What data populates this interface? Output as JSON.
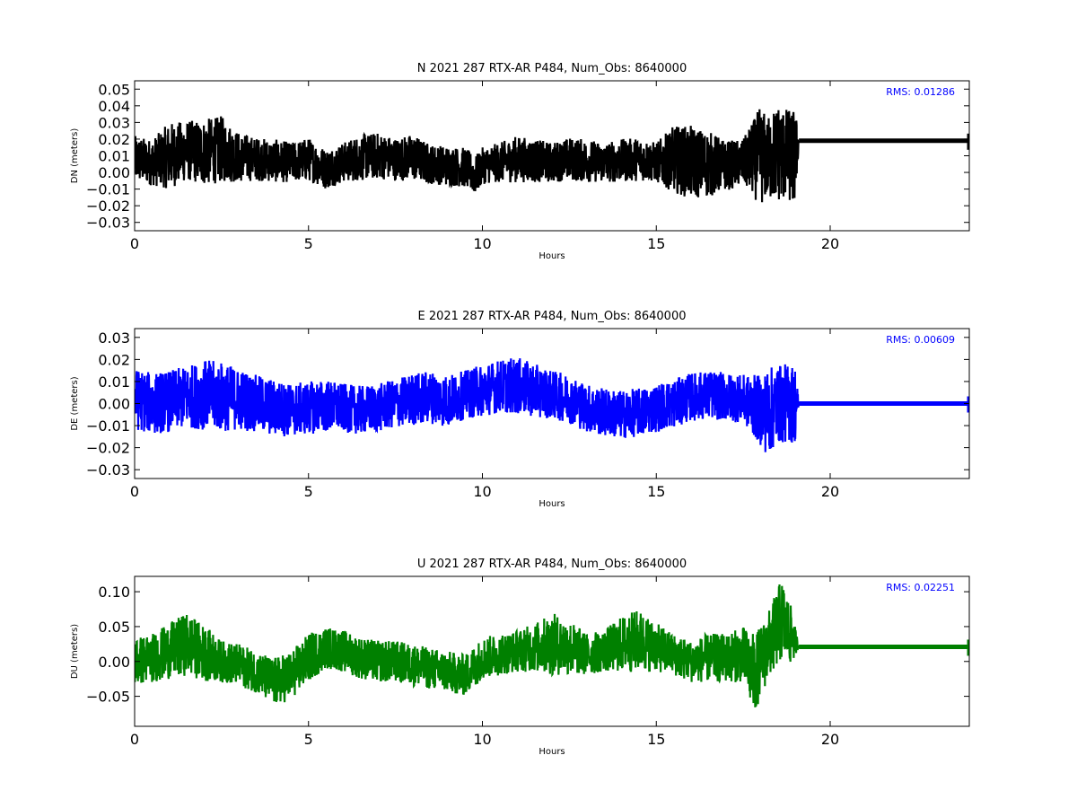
{
  "chart_data": [
    {
      "type": "line",
      "title": "N 2021 287 RTX-AR  P484, Num_Obs: 8640000",
      "xlabel": "Hours",
      "ylabel": "DN (meters)",
      "xlim": [
        0,
        24
      ],
      "ylim": [
        -0.035,
        0.055
      ],
      "xticks": [
        0,
        5,
        10,
        15,
        20
      ],
      "yticks": [
        -0.03,
        -0.02,
        -0.01,
        0.0,
        0.01,
        0.02,
        0.03,
        0.04,
        0.05
      ],
      "ytick_labels": [
        "−0.03",
        "−0.02",
        "−0.01",
        "0.00",
        "0.01",
        "0.02",
        "0.03",
        "0.04",
        "0.05"
      ],
      "grid": false,
      "color": "#000000",
      "annotation": "RMS:  0.01286",
      "annotation_color": "#0000ff",
      "series": [
        {
          "x": [
            0.0,
            0.5,
            1.0,
            1.5,
            2.0,
            2.5,
            3.0,
            3.5,
            4.0,
            4.5,
            5.0,
            5.5,
            6.0,
            6.5,
            7.0,
            7.5,
            8.0,
            8.5,
            9.0,
            9.5,
            9.8,
            10.0,
            10.5,
            11.0,
            11.5,
            12.0,
            12.5,
            13.0,
            13.5,
            14.0,
            14.5,
            15.0,
            15.5,
            16.0,
            16.5,
            17.0,
            17.5,
            18.0,
            18.2,
            18.5,
            18.8,
            19.0,
            19.1,
            24.0
          ],
          "y": [
            0.008,
            0.006,
            0.01,
            0.013,
            0.012,
            0.014,
            0.009,
            0.008,
            0.007,
            0.006,
            0.008,
            0.002,
            0.006,
            0.009,
            0.01,
            0.008,
            0.009,
            0.005,
            0.004,
            0.003,
            -0.002,
            0.004,
            0.006,
            0.008,
            0.007,
            0.006,
            0.008,
            0.007,
            0.006,
            0.007,
            0.008,
            0.006,
            0.008,
            0.006,
            0.005,
            0.004,
            0.006,
            0.01,
            0.008,
            0.012,
            0.01,
            0.008,
            0.019,
            0.019
          ],
          "band": [
            0.014,
            0.014,
            0.02,
            0.018,
            0.02,
            0.02,
            0.015,
            0.013,
            0.013,
            0.012,
            0.013,
            0.012,
            0.012,
            0.014,
            0.014,
            0.013,
            0.014,
            0.012,
            0.012,
            0.012,
            0.012,
            0.011,
            0.012,
            0.014,
            0.013,
            0.012,
            0.013,
            0.013,
            0.012,
            0.013,
            0.013,
            0.012,
            0.02,
            0.022,
            0.02,
            0.015,
            0.014,
            0.03,
            0.025,
            0.03,
            0.028,
            0.03,
            0.0,
            0.0
          ]
        }
      ]
    },
    {
      "type": "line",
      "title": "E 2021 287 RTX-AR  P484, Num_Obs: 8640000",
      "xlabel": "Hours",
      "ylabel": "DE (meters)",
      "xlim": [
        0,
        24
      ],
      "ylim": [
        -0.034,
        0.034
      ],
      "xticks": [
        0,
        5,
        10,
        15,
        20
      ],
      "yticks": [
        -0.03,
        -0.02,
        -0.01,
        0.0,
        0.01,
        0.02,
        0.03
      ],
      "ytick_labels": [
        "−0.03",
        "−0.02",
        "−0.01",
        "0.00",
        "0.01",
        "0.02",
        "0.03"
      ],
      "grid": false,
      "color": "#0000ff",
      "annotation": "RMS:  0.00609",
      "annotation_color": "#0000ff",
      "series": [
        {
          "x": [
            0.0,
            0.5,
            1.0,
            1.5,
            2.0,
            2.5,
            3.0,
            3.5,
            4.0,
            4.5,
            5.0,
            5.5,
            6.0,
            6.5,
            7.0,
            7.5,
            8.0,
            8.5,
            9.0,
            9.5,
            10.0,
            10.5,
            11.0,
            11.5,
            12.0,
            12.5,
            13.0,
            13.5,
            14.0,
            14.5,
            15.0,
            15.5,
            16.0,
            16.5,
            17.0,
            17.5,
            18.0,
            18.2,
            18.5,
            19.0,
            19.1,
            24.0
          ],
          "y": [
            0.002,
            0.0,
            0.001,
            0.003,
            0.004,
            0.003,
            0.002,
            0.0,
            -0.002,
            -0.003,
            -0.002,
            -0.001,
            -0.002,
            -0.003,
            -0.002,
            0.0,
            0.002,
            0.003,
            0.001,
            0.004,
            0.006,
            0.008,
            0.008,
            0.006,
            0.004,
            0.002,
            -0.002,
            -0.004,
            -0.005,
            -0.004,
            -0.002,
            0.0,
            0.003,
            0.004,
            0.003,
            0.002,
            -0.003,
            -0.004,
            0.0,
            0.0,
            0.0,
            0.0
          ],
          "band": [
            0.014,
            0.014,
            0.014,
            0.014,
            0.016,
            0.016,
            0.014,
            0.013,
            0.013,
            0.012,
            0.012,
            0.012,
            0.011,
            0.011,
            0.011,
            0.011,
            0.012,
            0.012,
            0.012,
            0.011,
            0.012,
            0.012,
            0.013,
            0.012,
            0.011,
            0.011,
            0.011,
            0.011,
            0.011,
            0.011,
            0.011,
            0.011,
            0.011,
            0.011,
            0.011,
            0.011,
            0.016,
            0.02,
            0.018,
            0.018,
            0.0,
            0.0
          ]
        }
      ]
    },
    {
      "type": "line",
      "title": "U 2021 287 RTX-AR  P484, Num_Obs: 8640000",
      "xlabel": "Hours",
      "ylabel": "DU (meters)",
      "xlim": [
        0,
        24
      ],
      "ylim": [
        -0.093,
        0.122
      ],
      "xticks": [
        0,
        5,
        10,
        15,
        20
      ],
      "yticks": [
        -0.05,
        0.0,
        0.05,
        0.1
      ],
      "ytick_labels": [
        "−0.05",
        "0.00",
        "0.05",
        "0.10"
      ],
      "grid": false,
      "color": "#008000",
      "annotation": "RMS:  0.02251",
      "annotation_color": "#0000ff",
      "series": [
        {
          "x": [
            0.0,
            0.5,
            1.0,
            1.5,
            2.0,
            2.5,
            3.0,
            3.5,
            4.0,
            4.5,
            5.0,
            5.5,
            6.0,
            6.5,
            7.0,
            7.5,
            8.0,
            8.5,
            9.0,
            9.5,
            10.0,
            10.5,
            11.0,
            11.5,
            12.0,
            12.5,
            13.0,
            13.5,
            14.0,
            14.5,
            15.0,
            15.5,
            16.0,
            16.5,
            17.0,
            17.5,
            17.8,
            18.0,
            18.3,
            18.6,
            18.9,
            19.1,
            24.0
          ],
          "y": [
            0.0,
            0.005,
            0.015,
            0.025,
            0.012,
            0.0,
            -0.005,
            -0.015,
            -0.03,
            -0.02,
            0.005,
            0.02,
            0.015,
            0.005,
            0.0,
            0.0,
            -0.005,
            -0.01,
            -0.015,
            -0.02,
            0.005,
            0.01,
            0.015,
            0.02,
            0.025,
            0.02,
            0.01,
            0.015,
            0.025,
            0.03,
            0.02,
            0.01,
            0.0,
            0.005,
            0.005,
            0.01,
            -0.02,
            0.0,
            0.03,
            0.06,
            0.035,
            0.021,
            0.021
          ],
          "band": [
            0.035,
            0.035,
            0.04,
            0.045,
            0.04,
            0.03,
            0.03,
            0.03,
            0.035,
            0.035,
            0.035,
            0.03,
            0.03,
            0.03,
            0.03,
            0.03,
            0.03,
            0.03,
            0.03,
            0.03,
            0.03,
            0.03,
            0.03,
            0.035,
            0.045,
            0.04,
            0.03,
            0.03,
            0.04,
            0.045,
            0.035,
            0.03,
            0.03,
            0.035,
            0.035,
            0.04,
            0.06,
            0.05,
            0.05,
            0.06,
            0.04,
            0.0,
            0.0
          ]
        }
      ]
    }
  ]
}
